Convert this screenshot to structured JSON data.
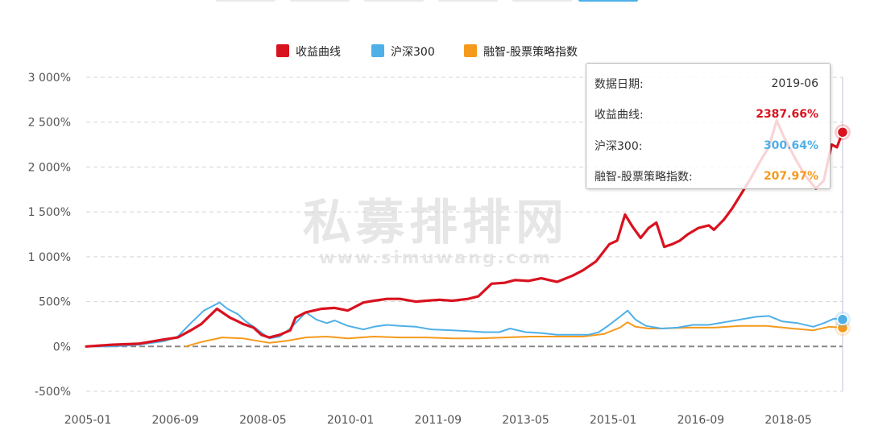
{
  "colors": {
    "red": "#d9121f",
    "blue": "#4fb0e8",
    "orange": "#f59a1c",
    "grid": "#d4d4d4",
    "axis_text": "#555555",
    "watermark": "#e4e4e4"
  },
  "watermark": {
    "cn": "私募排排网",
    "url": "www.simuwang.com"
  },
  "tooltip": {
    "date_label": "数据日期:",
    "date_value": "2019-06",
    "rows": [
      {
        "label": "收益曲线:",
        "value": "2387.66%",
        "color": "#d9121f"
      },
      {
        "label": "沪深300:",
        "value": "300.64%",
        "color": "#4fb0e8"
      },
      {
        "label": "融智-股票策略指数:",
        "value": "207.97%",
        "color": "#f59a1c"
      }
    ]
  },
  "chart_data": {
    "type": "line",
    "xlabels": [
      "2005-01",
      "2006-09",
      "2008-05",
      "2010-01",
      "2011-09",
      "2013-05",
      "2015-01",
      "2016-09",
      "2018-05"
    ],
    "yticks": [
      -500,
      0,
      500,
      1000,
      1500,
      2000,
      2500,
      3000
    ],
    "ytick_labels": [
      "-500%",
      "0%",
      "500%",
      "1 000%",
      "1 500%",
      "2 000%",
      "2 500%",
      "3 000%"
    ],
    "ylim": [
      -500,
      3000
    ],
    "xlim": [
      2005.0,
      2019.46
    ],
    "legend": [
      "收益曲线",
      "沪深300",
      "融智-股票策略指数"
    ],
    "grid": true,
    "series": [
      {
        "name": "收益曲线",
        "x": [
          2005.0,
          2005.5,
          2006.0,
          2006.5,
          2006.75,
          2007.0,
          2007.2,
          2007.5,
          2007.75,
          2007.9,
          2008.0,
          2008.2,
          2008.35,
          2008.5,
          2008.7,
          2008.9,
          2009.0,
          2009.2,
          2009.35,
          2009.5,
          2009.75,
          2010.0,
          2010.3,
          2010.5,
          2010.75,
          2011.0,
          2011.3,
          2011.5,
          2011.75,
          2012.0,
          2012.3,
          2012.5,
          2012.75,
          2013.0,
          2013.2,
          2013.45,
          2013.7,
          2014.0,
          2014.3,
          2014.5,
          2014.75,
          2015.0,
          2015.15,
          2015.3,
          2015.45,
          2015.6,
          2015.75,
          2015.9,
          2016.05,
          2016.2,
          2016.35,
          2016.5,
          2016.7,
          2016.9,
          2017.0,
          2017.2,
          2017.35,
          2017.5,
          2017.7,
          2017.9,
          2018.05,
          2018.2,
          2018.35,
          2018.55,
          2018.75,
          2018.95,
          2019.1,
          2019.25,
          2019.35,
          2019.46
        ],
        "values": [
          0,
          20,
          30,
          80,
          100,
          180,
          250,
          420,
          320,
          280,
          250,
          210,
          130,
          100,
          130,
          180,
          320,
          380,
          400,
          420,
          430,
          400,
          490,
          510,
          530,
          530,
          500,
          510,
          520,
          510,
          530,
          560,
          700,
          710,
          740,
          730,
          760,
          720,
          790,
          850,
          950,
          1140,
          1180,
          1470,
          1330,
          1210,
          1320,
          1380,
          1110,
          1140,
          1180,
          1250,
          1320,
          1350,
          1300,
          1420,
          1540,
          1680,
          1870,
          2080,
          2220,
          2520,
          2320,
          2100,
          1900,
          1760,
          1850,
          2250,
          2220,
          2387.66
        ]
      },
      {
        "name": "沪深300",
        "x": [
          2005.0,
          2005.5,
          2006.0,
          2006.5,
          2006.75,
          2007.0,
          2007.25,
          2007.55,
          2007.7,
          2007.9,
          2008.05,
          2008.25,
          2008.5,
          2008.7,
          2008.9,
          2009.2,
          2009.4,
          2009.6,
          2009.75,
          2010.0,
          2010.3,
          2010.5,
          2010.75,
          2011.0,
          2011.3,
          2011.6,
          2012.0,
          2012.3,
          2012.6,
          2012.9,
          2013.1,
          2013.4,
          2013.7,
          2014.0,
          2014.3,
          2014.6,
          2014.8,
          2015.0,
          2015.2,
          2015.35,
          2015.5,
          2015.7,
          2016.0,
          2016.3,
          2016.6,
          2016.9,
          2017.2,
          2017.5,
          2017.8,
          2018.05,
          2018.3,
          2018.6,
          2018.9,
          2019.1,
          2019.3,
          2019.46
        ],
        "values": [
          0,
          0,
          20,
          60,
          110,
          260,
          400,
          490,
          420,
          360,
          280,
          200,
          90,
          110,
          200,
          380,
          300,
          260,
          290,
          230,
          190,
          220,
          240,
          230,
          220,
          190,
          180,
          170,
          160,
          160,
          200,
          160,
          150,
          130,
          130,
          130,
          160,
          240,
          330,
          400,
          300,
          230,
          200,
          210,
          240,
          240,
          270,
          300,
          330,
          340,
          280,
          260,
          220,
          260,
          310,
          300.64
        ]
      },
      {
        "name": "融智-股票策略指数",
        "x": [
          2006.9,
          2007.2,
          2007.6,
          2008.0,
          2008.5,
          2008.8,
          2009.2,
          2009.6,
          2010.0,
          2010.5,
          2011.0,
          2011.5,
          2012.0,
          2012.5,
          2013.0,
          2013.5,
          2014.0,
          2014.5,
          2014.9,
          2015.2,
          2015.35,
          2015.5,
          2015.75,
          2016.0,
          2016.5,
          2017.0,
          2017.5,
          2018.0,
          2018.5,
          2018.9,
          2019.2,
          2019.46
        ],
        "values": [
          0,
          50,
          100,
          90,
          40,
          60,
          100,
          110,
          90,
          110,
          100,
          100,
          90,
          90,
          100,
          110,
          110,
          110,
          140,
          210,
          270,
          220,
          200,
          200,
          210,
          210,
          230,
          230,
          200,
          180,
          220,
          207.97
        ]
      }
    ]
  }
}
